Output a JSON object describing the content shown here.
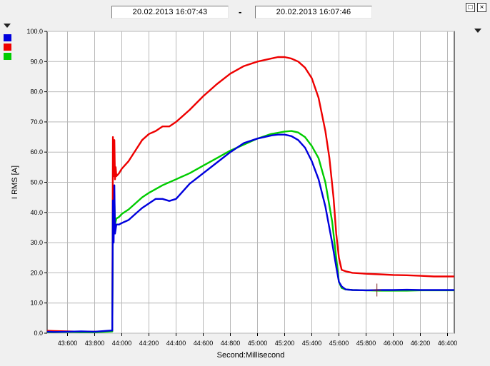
{
  "header": {
    "start_time": "20.02.2013     16:07:43",
    "separator": "-",
    "end_time": "20.02.2013     16:07:46"
  },
  "window": {
    "restore_glyph": "□",
    "close_glyph": "×"
  },
  "icons": {
    "legend_menu": "dropdown-arrow-icon",
    "chart_menu": "dropdown-arrow-icon"
  },
  "chart_data": {
    "type": "line",
    "xlabel": "Second:Millisecond",
    "ylabel": "I RMS [A]",
    "xlim": [
      43450,
      46450
    ],
    "ylim": [
      0,
      100
    ],
    "grid": true,
    "legend": "left-swatches",
    "x_ticks": [
      43600,
      43800,
      44000,
      44200,
      44400,
      44600,
      44800,
      45000,
      45200,
      45400,
      45600,
      45800,
      46000,
      46200,
      46400
    ],
    "x_tick_labels": [
      "43:600",
      "43:800",
      "44:000",
      "44:200",
      "44:400",
      "44:600",
      "44:800",
      "45:000",
      "45:200",
      "45:400",
      "45:600",
      "45:800",
      "46:000",
      "46:200",
      "46:400"
    ],
    "y_ticks": [
      0,
      10,
      20,
      30,
      40,
      50,
      60,
      70,
      80,
      90,
      100
    ],
    "y_tick_labels": [
      "0.0",
      "10.0",
      "20.0",
      "30.0",
      "40.0",
      "50.0",
      "60.0",
      "70.0",
      "80.0",
      "90.0",
      "100.0"
    ],
    "series": [
      {
        "color": "#0000dd",
        "x": [
          43450,
          43500,
          43600,
          43700,
          43800,
          43900,
          43930,
          43935,
          43940,
          43945,
          43950,
          43960,
          43980,
          44000,
          44050,
          44100,
          44150,
          44200,
          44250,
          44300,
          44350,
          44400,
          44450,
          44500,
          44600,
          44700,
          44800,
          44900,
          45000,
          45100,
          45150,
          45200,
          45250,
          45300,
          45350,
          45400,
          45450,
          45500,
          45550,
          45580,
          45600,
          45620,
          45650,
          45700,
          45800,
          45900,
          46000,
          46100,
          46200,
          46300,
          46450
        ],
        "y": [
          0.5,
          0.4,
          0.5,
          0.6,
          0.5,
          0.8,
          0.9,
          44,
          30,
          49,
          33,
          36,
          36,
          36.5,
          37.5,
          39.5,
          41.5,
          43,
          44.5,
          44.5,
          43.8,
          44.5,
          47,
          49.5,
          53,
          56.5,
          60,
          63,
          64.5,
          65.5,
          65.8,
          65.8,
          65.3,
          64,
          61.5,
          57,
          51,
          42,
          30,
          22,
          17,
          15.5,
          14.5,
          14.3,
          14.2,
          14.3,
          14.3,
          14.4,
          14.3,
          14.3,
          14.3
        ]
      },
      {
        "color": "#ee0000",
        "x": [
          43450,
          43500,
          43600,
          43700,
          43800,
          43900,
          43930,
          43935,
          43940,
          43945,
          43950,
          43955,
          43960,
          43980,
          44000,
          44050,
          44100,
          44150,
          44200,
          44250,
          44300,
          44350,
          44400,
          44500,
          44600,
          44700,
          44800,
          44900,
          45000,
          45100,
          45150,
          45200,
          45250,
          45300,
          45350,
          45400,
          45450,
          45500,
          45530,
          45560,
          45580,
          45600,
          45620,
          45650,
          45700,
          45800,
          45900,
          46000,
          46100,
          46200,
          46300,
          46450
        ],
        "y": [
          0.8,
          0.7,
          0.6,
          0.5,
          0.5,
          0.6,
          0.7,
          65,
          52,
          64,
          51,
          55,
          52,
          53,
          54.5,
          57,
          60.5,
          64,
          66,
          67,
          68.5,
          68.5,
          70,
          74,
          78.5,
          82.5,
          86,
          88.5,
          90,
          91,
          91.5,
          91.5,
          91,
          90,
          88,
          84.5,
          78,
          67,
          58,
          45,
          33,
          25,
          21,
          20.5,
          20,
          19.7,
          19.5,
          19.3,
          19.2,
          19,
          18.8,
          18.8
        ]
      },
      {
        "color": "#00cc00",
        "x": [
          43450,
          43500,
          43600,
          43700,
          43800,
          43900,
          43930,
          43935,
          43940,
          43945,
          43950,
          43960,
          43980,
          44000,
          44050,
          44100,
          44150,
          44200,
          44300,
          44400,
          44500,
          44600,
          44700,
          44800,
          44900,
          45000,
          45100,
          45200,
          45250,
          45300,
          45350,
          45400,
          45450,
          45500,
          45550,
          45580,
          45600,
          45620,
          45650,
          45700,
          45800,
          45900,
          46000,
          46100,
          46200,
          46300,
          46450
        ],
        "y": [
          0.3,
          0.3,
          0.4,
          0.3,
          0.3,
          0.5,
          0.6,
          40,
          33,
          45,
          36,
          38,
          38.5,
          39.5,
          41,
          43,
          45,
          46.5,
          49,
          51,
          53,
          55.5,
          58,
          60.5,
          62.5,
          64.5,
          66,
          66.8,
          67,
          66.5,
          65,
          62,
          58,
          50,
          37,
          25,
          17,
          15,
          14.5,
          14.3,
          14.2,
          14.1,
          14.1,
          14.1,
          14.2,
          14.2,
          14.2
        ]
      }
    ]
  }
}
